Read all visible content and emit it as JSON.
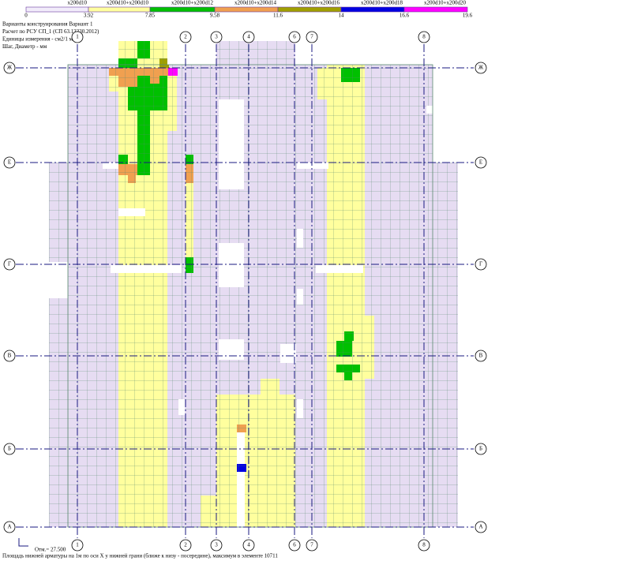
{
  "legend": {
    "labels": [
      "x200d10",
      "x200d10+x200d10",
      "x200d10+x200d12",
      "x200d10+x200d14",
      "x200d10+x200d16",
      "x200d10+x200d18",
      "x200d10+x200d20"
    ],
    "scale": [
      "0",
      "3.92",
      "7.85",
      "9.58",
      "11.6",
      "14",
      "16.6",
      "19.6"
    ]
  },
  "header": {
    "lines": [
      "Варианты конструирования Вариант 1",
      "Расчет по РСУ СП_1 (СП 63.13330.2012)",
      "Единицы измерения - см2/1 м",
      "Шаг, Диаметр - мм"
    ]
  },
  "axes": {
    "vertical": [
      "1",
      "2",
      "3",
      "4",
      "6",
      "7",
      "8"
    ],
    "horizontal": [
      "Ж",
      "Е",
      "Г",
      "В",
      "Б",
      "А"
    ]
  },
  "footer": {
    "elevation": "Отм.= 27.500",
    "caption": "Площадь нижней арматуры на 1м по оси X у нижней грани (ближе к низу - посередине), максимум в элементе 10711"
  }
}
